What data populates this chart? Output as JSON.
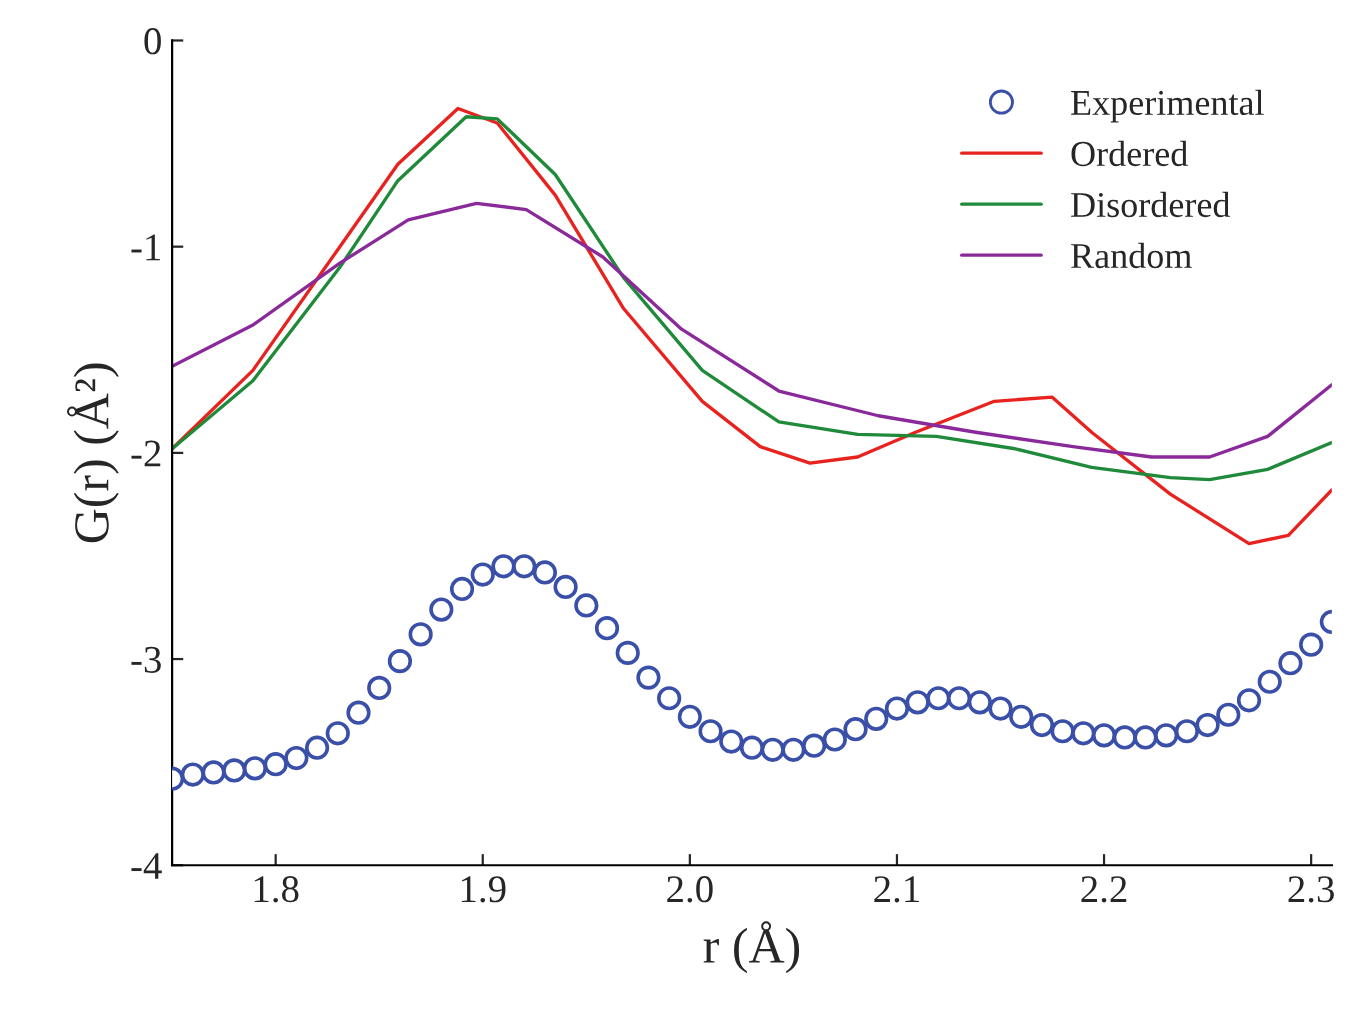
{
  "chart_data": {
    "type": "line",
    "xlabel": "r (Å)",
    "ylabel": "G(r) (Å²)",
    "xlim": [
      1.75,
      2.31
    ],
    "ylim": [
      -4,
      0
    ],
    "xticks": [
      {
        "value": 1.8,
        "label": "1.8"
      },
      {
        "value": 1.9,
        "label": "1.9"
      },
      {
        "value": 2.0,
        "label": "2.0"
      },
      {
        "value": 2.1,
        "label": "2.1"
      },
      {
        "value": 2.2,
        "label": "2.2"
      },
      {
        "value": 2.3,
        "label": "2.3"
      }
    ],
    "yticks": [
      {
        "value": -4,
        "label": "-4"
      },
      {
        "value": -3,
        "label": "-3"
      },
      {
        "value": -2,
        "label": "-2"
      },
      {
        "value": -1,
        "label": "-1"
      },
      {
        "value": 0,
        "label": "0"
      }
    ],
    "grid": false,
    "legend": "top right",
    "series": [
      {
        "name": "Experimental",
        "type": "scatter",
        "marker": "circle",
        "color": "#3a4fa8",
        "x": [
          1.75,
          1.76,
          1.77,
          1.78,
          1.79,
          1.8,
          1.81,
          1.82,
          1.83,
          1.84,
          1.85,
          1.86,
          1.87,
          1.88,
          1.89,
          1.9,
          1.91,
          1.92,
          1.93,
          1.94,
          1.95,
          1.96,
          1.97,
          1.98,
          1.99,
          2.0,
          2.01,
          2.02,
          2.03,
          2.04,
          2.05,
          2.06,
          2.07,
          2.08,
          2.09,
          2.1,
          2.11,
          2.12,
          2.13,
          2.14,
          2.15,
          2.16,
          2.17,
          2.18,
          2.19,
          2.2,
          2.21,
          2.22,
          2.23,
          2.24,
          2.25,
          2.26,
          2.27,
          2.28,
          2.29,
          2.3,
          2.31
        ],
        "values": [
          -3.58,
          -3.56,
          -3.55,
          -3.54,
          -3.53,
          -3.51,
          -3.48,
          -3.43,
          -3.36,
          -3.26,
          -3.14,
          -3.01,
          -2.88,
          -2.76,
          -2.66,
          -2.59,
          -2.55,
          -2.55,
          -2.58,
          -2.65,
          -2.74,
          -2.85,
          -2.97,
          -3.09,
          -3.19,
          -3.28,
          -3.35,
          -3.4,
          -3.43,
          -3.44,
          -3.44,
          -3.42,
          -3.39,
          -3.34,
          -3.29,
          -3.24,
          -3.21,
          -3.19,
          -3.19,
          -3.21,
          -3.24,
          -3.28,
          -3.32,
          -3.35,
          -3.36,
          -3.37,
          -3.38,
          -3.38,
          -3.37,
          -3.35,
          -3.32,
          -3.27,
          -3.2,
          -3.11,
          -3.02,
          -2.93,
          -2.82
        ]
      },
      {
        "name": "Ordered",
        "color": "#e8231f",
        "x": [
          1.75,
          1.789,
          1.831,
          1.859,
          1.888,
          1.907,
          1.935,
          1.968,
          2.006,
          2.034,
          2.058,
          2.081,
          2.109,
          2.147,
          2.175,
          2.194,
          2.232,
          2.27,
          2.289,
          2.31
        ],
        "values": [
          -1.98,
          -1.6,
          -1.0,
          -0.6,
          -0.33,
          -0.4,
          -0.75,
          -1.3,
          -1.75,
          -1.97,
          -2.05,
          -2.02,
          -1.9,
          -1.75,
          -1.73,
          -1.9,
          -2.2,
          -2.44,
          -2.4,
          -2.18
        ]
      },
      {
        "name": "Disordered",
        "color": "#1f8a3a",
        "x": [
          1.75,
          1.789,
          1.831,
          1.859,
          1.892,
          1.907,
          1.935,
          1.968,
          2.006,
          2.043,
          2.081,
          2.119,
          2.157,
          2.194,
          2.232,
          2.251,
          2.279,
          2.31
        ],
        "values": [
          -1.98,
          -1.65,
          -1.1,
          -0.68,
          -0.37,
          -0.38,
          -0.65,
          -1.15,
          -1.6,
          -1.85,
          -1.91,
          -1.92,
          -1.98,
          -2.07,
          -2.12,
          -2.13,
          -2.08,
          -1.95
        ]
      },
      {
        "name": "Random",
        "color": "#8a2a9a",
        "x": [
          1.75,
          1.789,
          1.831,
          1.864,
          1.897,
          1.921,
          1.958,
          1.996,
          2.043,
          2.091,
          2.138,
          2.185,
          2.223,
          2.251,
          2.279,
          2.31
        ],
        "values": [
          -1.58,
          -1.38,
          -1.08,
          -0.87,
          -0.79,
          -0.82,
          -1.05,
          -1.4,
          -1.7,
          -1.82,
          -1.9,
          -1.97,
          -2.02,
          -2.02,
          -1.92,
          -1.67
        ]
      }
    ]
  }
}
